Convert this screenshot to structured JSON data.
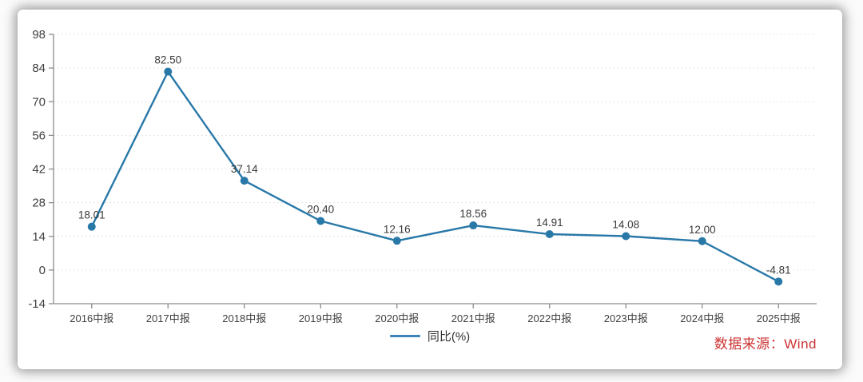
{
  "card": {
    "legend": {
      "label": "同比(%)"
    },
    "source": {
      "label": "数据来源：Wind"
    }
  },
  "chart_data": {
    "type": "line",
    "title": "",
    "xlabel": "",
    "ylabel": "",
    "categories": [
      "2016中报",
      "2017中报",
      "2018中报",
      "2019中报",
      "2020中报",
      "2021中报",
      "2022中报",
      "2023中报",
      "2024中报",
      "2025中报"
    ],
    "series": [
      {
        "name": "同比(%)",
        "values": [
          18.01,
          82.5,
          37.14,
          20.4,
          12.16,
          18.56,
          14.91,
          14.08,
          12.0,
          -4.81
        ],
        "labels": [
          "18.01",
          "82.50",
          "37.14",
          "20.40",
          "12.16",
          "18.56",
          "14.91",
          "14.08",
          "12.00",
          "-4.81"
        ]
      }
    ],
    "ylim": [
      -14,
      98
    ],
    "yticks": [
      98,
      84,
      70,
      56,
      42,
      28,
      14,
      0,
      -14
    ],
    "grid": "dashed-horizontal",
    "legend_position": "bottom-center",
    "colors": {
      "line": "#2878a8",
      "marker": "#2878a8",
      "legend_swatch": "#3f86b8",
      "data_label": "#3a3a3a",
      "tick_label": "#404040",
      "axis": "#8c8c8c",
      "grid": "#e3e3e3",
      "source_text": "#cc3333"
    }
  }
}
